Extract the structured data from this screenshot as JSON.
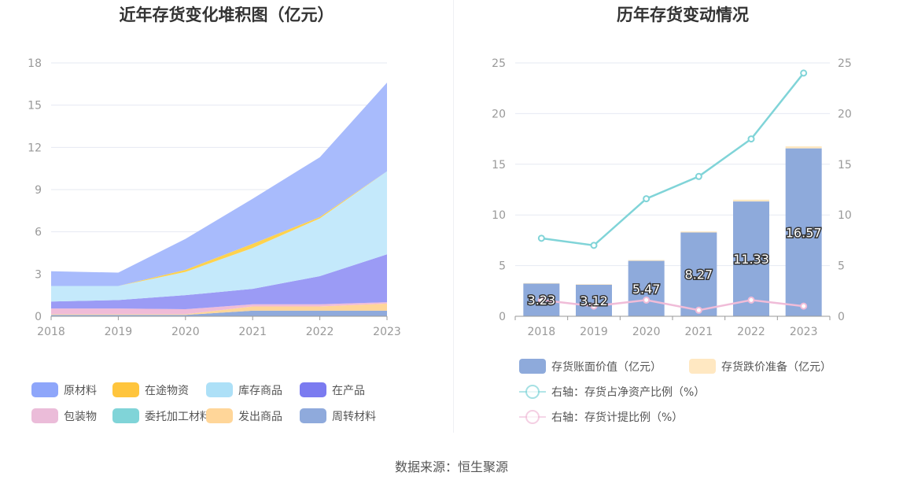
{
  "source_label": "数据来源：恒生聚源",
  "chart_data": [
    {
      "type": "area",
      "stacked": true,
      "title": "近年存货变化堆积图（亿元）",
      "categories": [
        "2018",
        "2019",
        "2020",
        "2021",
        "2022",
        "2023"
      ],
      "ylim": [
        0,
        18
      ],
      "yticks": [
        0,
        3,
        6,
        9,
        12,
        15,
        18
      ],
      "grid": true,
      "legend_position": "bottom",
      "series": [
        {
          "name": "周转材料",
          "color": "#8faadc",
          "values": [
            0.1,
            0.1,
            0.1,
            0.4,
            0.4,
            0.4
          ]
        },
        {
          "name": "发出商品",
          "color": "#ffd699",
          "values": [
            0.05,
            0.05,
            0.05,
            0.3,
            0.3,
            0.5
          ]
        },
        {
          "name": "委托加工材料",
          "color": "#80d4d8",
          "values": [
            0.0,
            0.0,
            0.0,
            0.0,
            0.0,
            0.0
          ]
        },
        {
          "name": "包装物",
          "color": "#f0bcd8",
          "values": [
            0.4,
            0.4,
            0.35,
            0.15,
            0.15,
            0.1
          ]
        },
        {
          "name": "在产品",
          "color": "#9b9bf5",
          "values": [
            0.5,
            0.6,
            1.0,
            1.1,
            2.0,
            3.4
          ]
        },
        {
          "name": "库存商品",
          "color": "#c4e9fb",
          "values": [
            1.1,
            1.0,
            1.65,
            2.9,
            4.1,
            5.9
          ]
        },
        {
          "name": "在途物资",
          "color": "#ffd24d",
          "values": [
            0.0,
            0.0,
            0.15,
            0.3,
            0.1,
            0.0
          ]
        },
        {
          "name": "原材料",
          "color": "#a8bbfc",
          "values": [
            1.05,
            0.95,
            2.2,
            3.2,
            4.25,
            6.3
          ]
        }
      ],
      "legend_order": [
        "原材料",
        "在途物资",
        "库存商品",
        "在产品",
        "包装物",
        "委托加工材料",
        "发出商品",
        "周转材料"
      ],
      "legend_colors": [
        "#8ea6fa",
        "#ffc53d",
        "#ade0f7",
        "#7b7bf0",
        "#ebbcd9",
        "#80d4d8",
        "#ffd699",
        "#8faadc"
      ]
    },
    {
      "type": "bar",
      "title": "历年存货变动情况",
      "categories": [
        "2018",
        "2019",
        "2020",
        "2021",
        "2022",
        "2023"
      ],
      "ylim": [
        0,
        25
      ],
      "yticks": [
        0,
        5,
        10,
        15,
        20,
        25
      ],
      "y2lim": [
        0,
        25
      ],
      "y2ticks": [
        0,
        5,
        10,
        15,
        20,
        25
      ],
      "grid": true,
      "legend_position": "bottom",
      "series": [
        {
          "name": "存货账面价值（亿元）",
          "kind": "bar",
          "color": "#8eaadb",
          "values": [
            3.23,
            3.12,
            5.47,
            8.27,
            11.33,
            16.57
          ],
          "labels": [
            "3.23",
            "3.12",
            "5.47",
            "8.27",
            "11.33",
            "16.57"
          ]
        },
        {
          "name": "存货跌价准备（亿元）",
          "kind": "bar-stack",
          "color": "#ffe8c2",
          "values": [
            0.05,
            0.05,
            0.08,
            0.1,
            0.18,
            0.2
          ]
        },
        {
          "name": "右轴：存货占净资产比例（%）",
          "kind": "line",
          "axis": "right",
          "color": "#80d4d8",
          "values": [
            7.7,
            7.0,
            11.6,
            13.8,
            17.5,
            24.0
          ]
        },
        {
          "name": "右轴：存货计提比例（%）",
          "kind": "line",
          "axis": "right",
          "color": "#f0bcd8",
          "values": [
            1.6,
            1.0,
            1.6,
            0.6,
            1.6,
            1.0
          ]
        }
      ]
    }
  ]
}
